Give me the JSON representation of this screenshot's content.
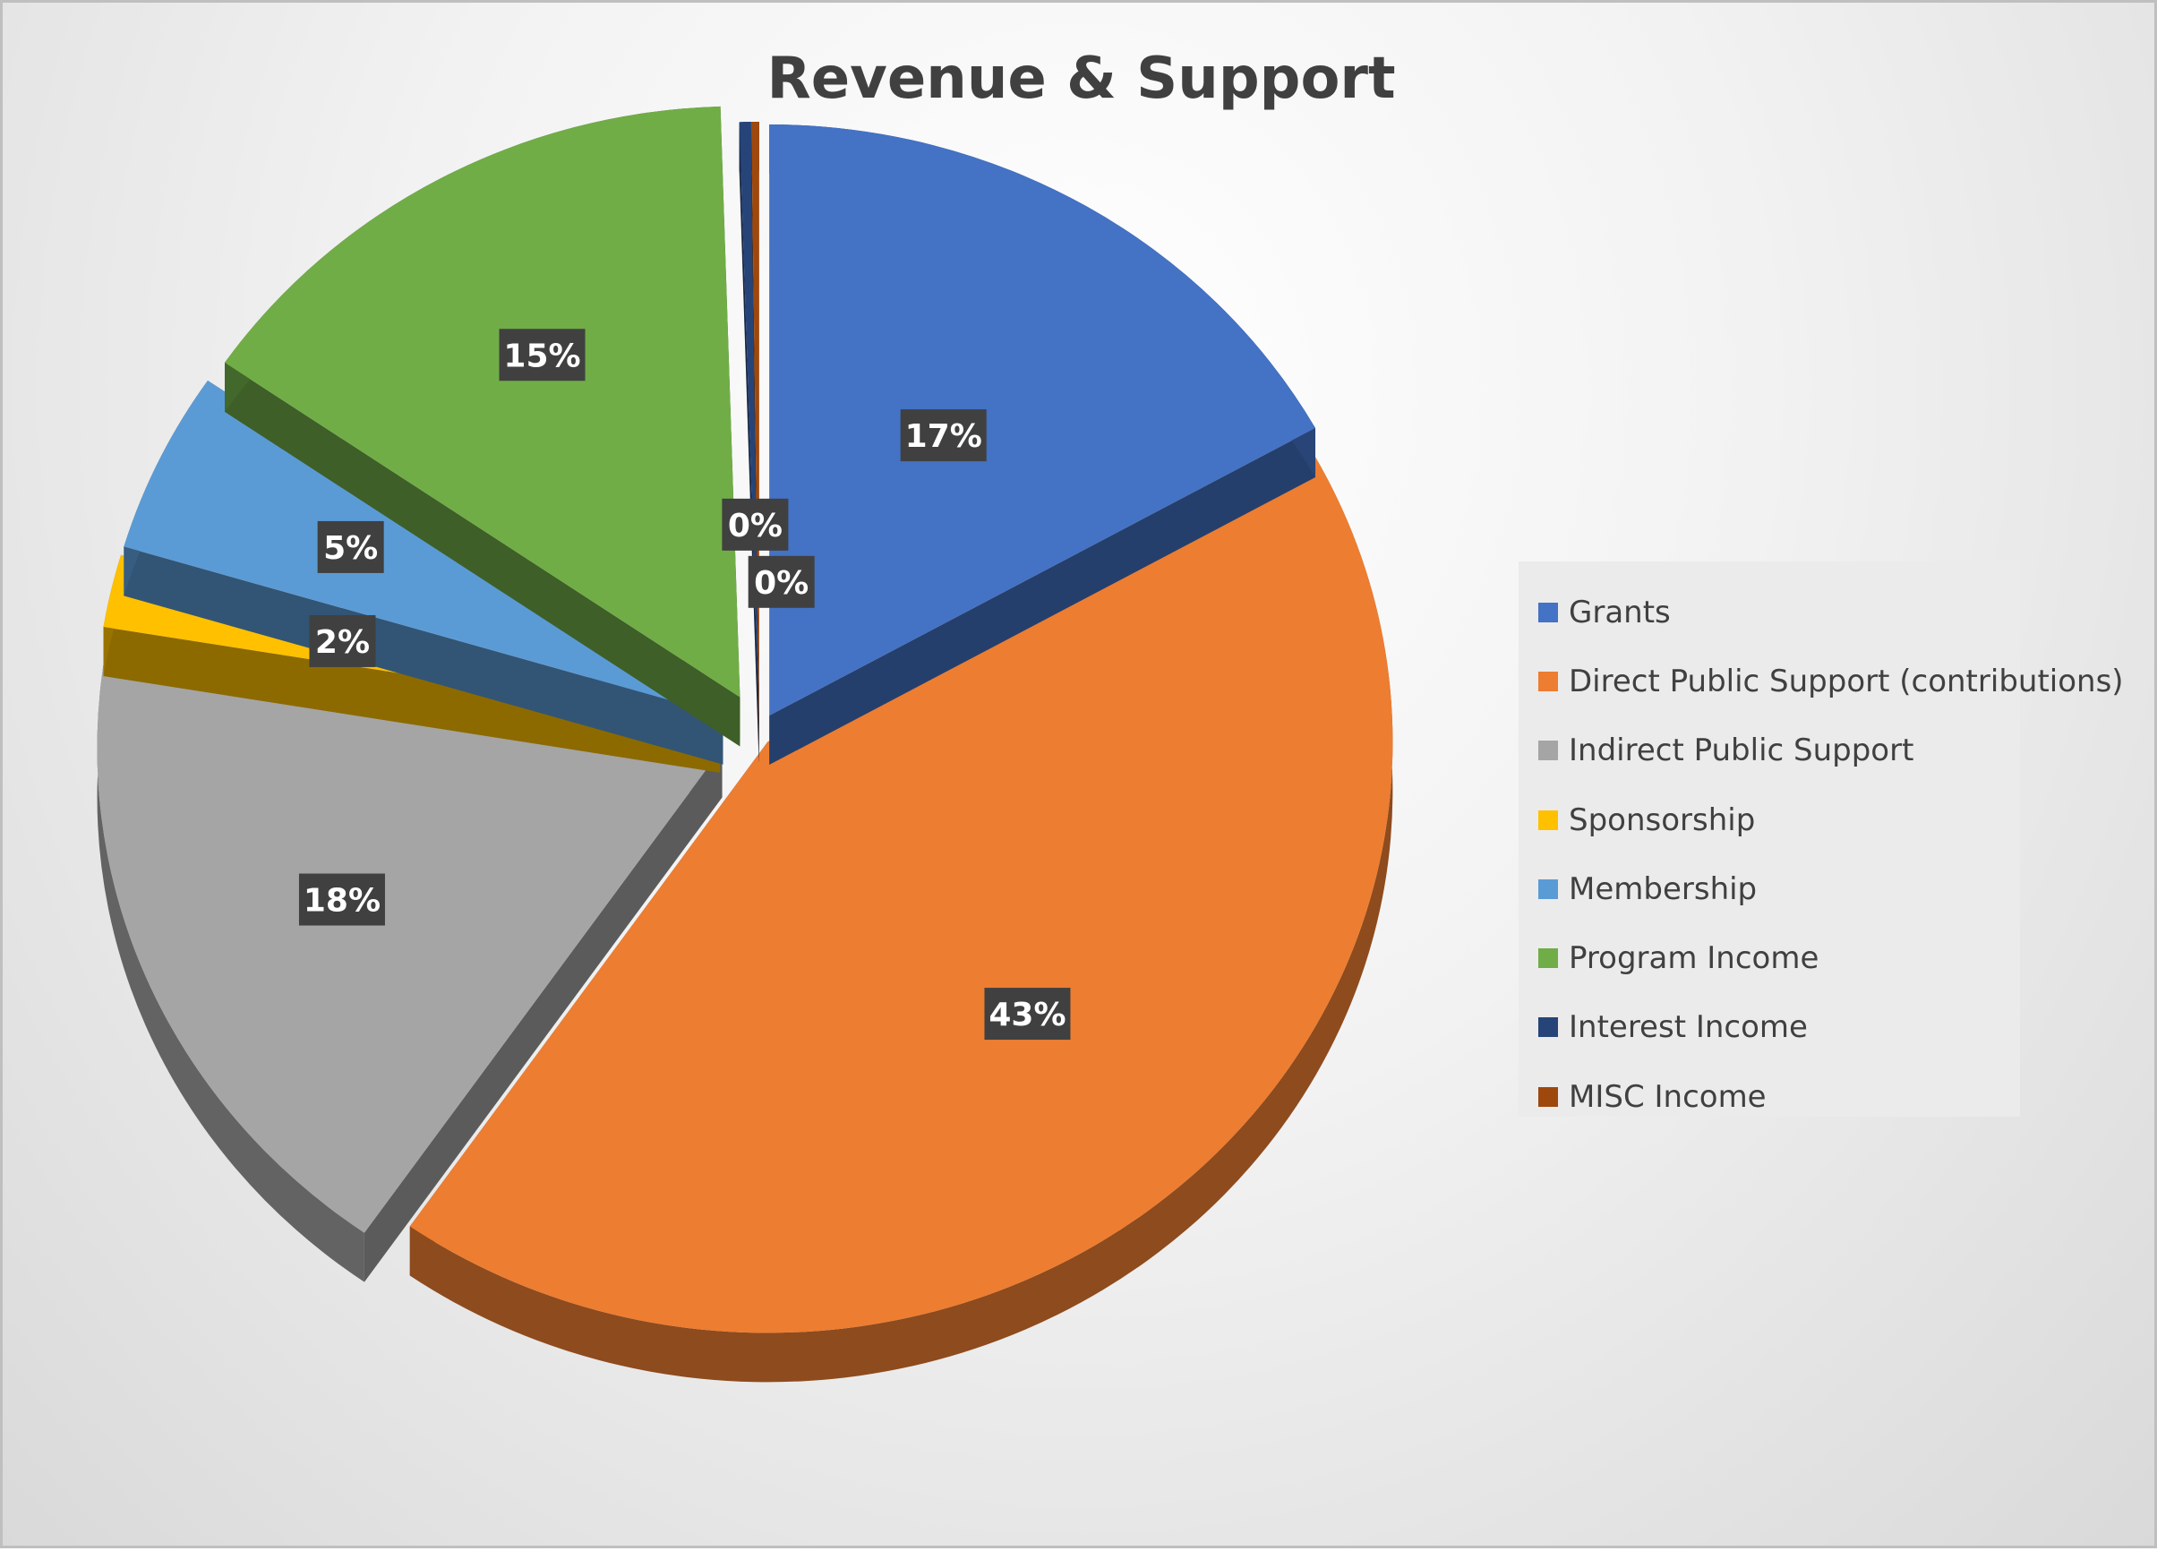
{
  "chart_data": {
    "type": "pie",
    "title": "Revenue & Support",
    "categories": [
      "Grants",
      "Direct Public Support (contributions)",
      "Indirect Public Support",
      "Sponsorship",
      "Membership",
      "Program Income",
      "Interest Income",
      "MISC Income"
    ],
    "values": [
      17,
      43,
      18,
      2,
      5,
      15,
      0.3,
      0.2
    ],
    "data_labels": [
      "17%",
      "43%",
      "18%",
      "2%",
      "5%",
      "15%",
      "0%",
      "0%"
    ],
    "colors": [
      "#4472c4",
      "#ed7d31",
      "#a5a5a5",
      "#ffc000",
      "#5b9bd5",
      "#70ad47",
      "#264478",
      "#9e480e"
    ],
    "legend_position": "right",
    "style": "3d-exploded"
  }
}
